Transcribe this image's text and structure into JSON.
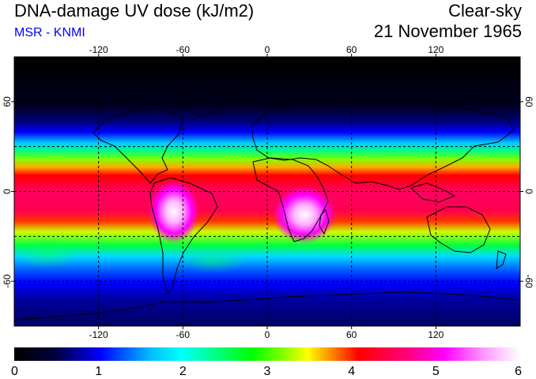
{
  "header": {
    "title": "DNA-damage UV dose (kJ/m2)",
    "source": "MSR - KNMI",
    "sky_condition": "Clear-sky",
    "date": "21 November 1965"
  },
  "map": {
    "projection": "equirectangular",
    "lon_range": [
      -180,
      180
    ],
    "lat_range": [
      -90,
      90
    ],
    "lon_ticks": [
      {
        "value": -120,
        "label": "-120"
      },
      {
        "value": -60,
        "label": "-60"
      },
      {
        "value": 0,
        "label": "0"
      },
      {
        "value": 60,
        "label": "60"
      },
      {
        "value": 120,
        "label": "120"
      }
    ],
    "lat_ticks": [
      {
        "value": 60,
        "label": "60"
      },
      {
        "value": 0,
        "label": "0"
      },
      {
        "value": -60,
        "label": "-60"
      }
    ],
    "gridlines": true,
    "gridline_lats": [
      -60,
      -30,
      0,
      30,
      60
    ],
    "gridline_lons": [
      -120,
      -60,
      0,
      60,
      120
    ]
  },
  "colorbar": {
    "min": 0,
    "max": 6,
    "tick_labels": [
      "0",
      "1",
      "2",
      "3",
      "4",
      "5",
      "6"
    ],
    "colors": [
      "#000000",
      "#00003c",
      "#0000ff",
      "#00bfff",
      "#00ffff",
      "#00ff80",
      "#00ff00",
      "#80ff00",
      "#ffff00",
      "#ff8000",
      "#ff0000",
      "#ff0080",
      "#ff00ff",
      "#ff9cff",
      "#ffffff"
    ]
  }
}
